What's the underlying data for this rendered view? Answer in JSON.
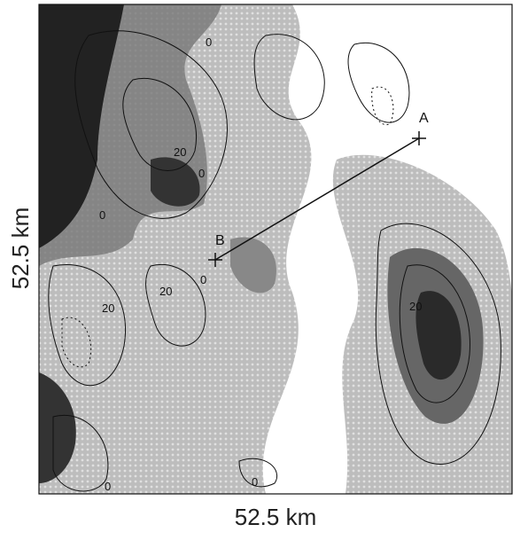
{
  "axes": {
    "x_label": "52.5 km",
    "y_label": "52.5 km"
  },
  "points": [
    {
      "label": "A"
    },
    {
      "label": "B"
    }
  ],
  "contour_labels": [
    "20",
    "0",
    "0",
    "0",
    "20",
    "20",
    "0",
    "20",
    "0",
    "0"
  ]
}
